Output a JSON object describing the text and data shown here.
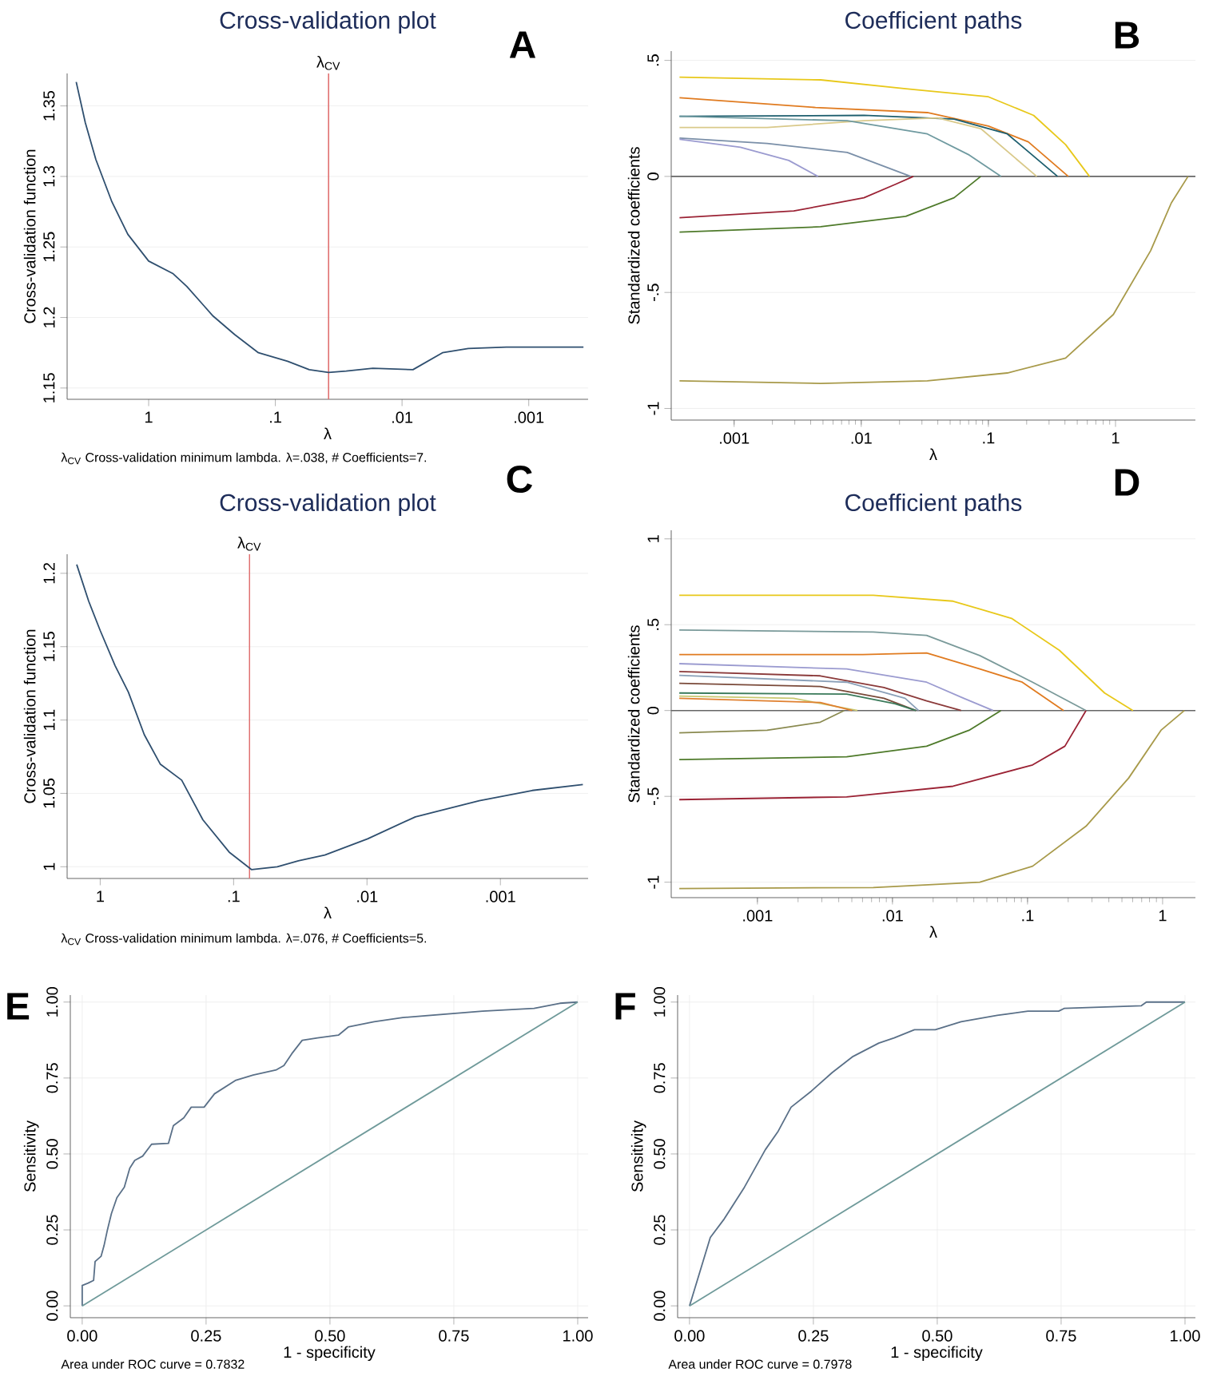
{
  "chart_data": [
    {
      "type": "line",
      "title": "Cross-validation plot",
      "xlabel": "λ",
      "ylabel": "Cross-validation function",
      "log": "x",
      "grid": "y",
      "marker": "none",
      "xlim": [
        4.4,
        0.00034
      ],
      "ylim": [
        1.142,
        1.373
      ],
      "xticks": [
        {
          "value": 1,
          "label": "1"
        },
        {
          "value": 0.1,
          "label": ".1"
        },
        {
          "value": 0.01,
          "label": ".01"
        },
        {
          "value": 0.001,
          "label": ".001"
        }
      ],
      "yticks": [
        1.15,
        1.2,
        1.25,
        1.3,
        1.35
      ],
      "x": [
        3.73,
        3.16,
        2.61,
        1.95,
        1.46,
        1,
        0.64,
        0.5,
        0.31,
        0.21,
        0.136,
        0.08,
        0.054,
        0.038,
        0.0276,
        0.017,
        0.0082,
        0.0048,
        0.003,
        0.0015,
        0.00037
      ],
      "series": [
        {
          "color": "#2f4f6f",
          "values": [
            1.367,
            1.338,
            1.312,
            1.282,
            1.259,
            1.24,
            1.231,
            1.222,
            1.201,
            1.188,
            1.175,
            1.169,
            1.163,
            1.161,
            1.162,
            1.164,
            1.163,
            1.175,
            1.178,
            1.179,
            1.179
          ]
        }
      ],
      "ref_lines": [
        {
          "axis": "x",
          "value": 0.038,
          "label": "λ$_{CV}$",
          "color": "#e07070"
        }
      ],
      "annotations": [
        "A",
        "λ$_{CV}$  Cross-validation minimum lambda.  λ=.038, # Coefficients=7."
      ]
    },
    {
      "type": "line",
      "title": "Coefficient paths",
      "xlabel": "λ",
      "ylabel": "Standardized coefficients",
      "log": "x",
      "grid": "y",
      "marker": "none",
      "xlim": [
        0.00032,
        4.25
      ],
      "ylim": [
        -1.05,
        0.54
      ],
      "xticks": [
        {
          "value": 0.001,
          "label": ".001"
        },
        {
          "value": 0.01,
          "label": ".01"
        },
        {
          "value": 0.1,
          "label": ".1"
        },
        {
          "value": 1,
          "label": "1"
        }
      ],
      "yticks": [
        -1,
        {
          "value": -0.5,
          "label": "-.5"
        },
        0,
        {
          "value": 0.5,
          "label": ".5"
        }
      ],
      "series": [
        {
          "color": "#e8c81a",
          "x": [
            0.000372,
            0.00479,
            0.0224,
            0.1,
            0.227,
            0.405,
            0.624
          ],
          "values": [
            0.428,
            0.416,
            0.378,
            0.343,
            0.263,
            0.137,
            0
          ]
        },
        {
          "color": "#e07b20",
          "x": [
            0.000372,
            0.00437,
            0.0331,
            0.1,
            0.206,
            0.425
          ],
          "values": [
            0.339,
            0.297,
            0.275,
            0.217,
            0.149,
            0
          ]
        },
        {
          "color": "#1d5e6e",
          "x": [
            0.000372,
            0.0105,
            0.0537,
            0.141,
            0.35
          ],
          "values": [
            0.259,
            0.263,
            0.247,
            0.183,
            0
          ]
        },
        {
          "color": "#d9c98a",
          "x": [
            0.000372,
            0.00182,
            0.0105,
            0.0398,
            0.0871,
            0.24
          ],
          "values": [
            0.211,
            0.211,
            0.24,
            0.252,
            0.206,
            0
          ]
        },
        {
          "color": "#6f9aa0",
          "x": [
            0.000372,
            0.00776,
            0.0331,
            0.0708,
            0.126
          ],
          "values": [
            0.259,
            0.24,
            0.183,
            0.092,
            0
          ]
        },
        {
          "color": "#7a8fa8",
          "x": [
            0.000372,
            0.00182,
            0.00776,
            0.0245
          ],
          "values": [
            0.165,
            0.142,
            0.103,
            0
          ]
        },
        {
          "color": "#9b9bd0",
          "x": [
            0.000372,
            0.00112,
            0.00269,
            0.00457
          ],
          "values": [
            0.16,
            0.126,
            0.069,
            0
          ]
        },
        {
          "color": "#9b2335",
          "x": [
            0.000372,
            0.00295,
            0.0105,
            0.0186,
            0.0257
          ],
          "values": [
            -0.178,
            -0.149,
            -0.092,
            -0.034,
            0
          ]
        },
        {
          "color": "#4e7a2a",
          "x": [
            0.000372,
            0.00479,
            0.0224,
            0.0537,
            0.0871
          ],
          "values": [
            -0.24,
            -0.217,
            -0.172,
            -0.092,
            0
          ]
        },
        {
          "color": "#a89a4a",
          "x": [
            0.000372,
            0.00479,
            0.0331,
            0.141,
            0.405,
            0.962,
            1.89,
            2.75,
            3.72
          ],
          "values": [
            -0.881,
            -0.892,
            -0.881,
            -0.847,
            -0.783,
            -0.595,
            -0.32,
            -0.114,
            0
          ]
        }
      ],
      "ref_lines": [
        {
          "axis": "y",
          "value": 0,
          "color": "#666666"
        }
      ],
      "annotations": [
        "B"
      ]
    },
    {
      "type": "line",
      "title": "Cross-validation plot",
      "xlabel": "λ",
      "ylabel": "Cross-validation function",
      "log": "x",
      "grid": "y",
      "marker": "none",
      "xlim": [
        1.77,
        0.00022
      ],
      "ylim": [
        0.992,
        1.213
      ],
      "xticks": [
        {
          "value": 1,
          "label": "1"
        },
        {
          "value": 0.1,
          "label": ".1"
        },
        {
          "value": 0.01,
          "label": ".01"
        },
        {
          "value": 0.001,
          "label": ".001"
        }
      ],
      "yticks": [
        1,
        1.05,
        1.1,
        1.15,
        1.2
      ],
      "x": [
        1.5,
        1.22,
        1,
        0.773,
        0.615,
        0.467,
        0.355,
        0.245,
        0.17,
        0.108,
        0.0732,
        0.0471,
        0.0327,
        0.0207,
        0.0099,
        0.00434,
        0.00144,
        0.000577,
        0.000241
      ],
      "series": [
        {
          "color": "#2f4f6f",
          "values": [
            1.206,
            1.181,
            1.161,
            1.137,
            1.119,
            1.09,
            1.07,
            1.059,
            1.032,
            1.01,
            0.998,
            1.0,
            1.004,
            1.008,
            1.019,
            1.034,
            1.045,
            1.052,
            1.056
          ]
        }
      ],
      "ref_lines": [
        {
          "axis": "x",
          "value": 0.076,
          "label": "λ$_{CV}$",
          "color": "#e07070"
        }
      ],
      "annotations": [
        "C",
        "λ$_{CV}$  Cross-validation minimum lambda.  λ=.076, # Coefficients=5."
      ]
    },
    {
      "type": "line",
      "title": "Coefficient paths",
      "xlabel": "λ",
      "ylabel": "Standardized coefficients",
      "log": "x",
      "grid": "y",
      "marker": "none",
      "xlim": [
        0.00023,
        1.75
      ],
      "ylim": [
        -1.09,
        1.05
      ],
      "xticks": [
        {
          "value": 0.001,
          "label": ".001"
        },
        {
          "value": 0.01,
          "label": ".01"
        },
        {
          "value": 0.1,
          "label": ".1"
        },
        {
          "value": 1,
          "label": "1"
        }
      ],
      "yticks": [
        -1,
        {
          "value": -0.5,
          "label": "-.5"
        },
        0,
        {
          "value": 0.5,
          "label": ".5"
        },
        1
      ],
      "series": [
        {
          "color": "#e8c81a",
          "x": [
            0.000264,
            0.00721,
            0.0281,
            0.0762,
            0.172,
            0.372,
            0.603
          ],
          "values": [
            0.671,
            0.671,
            0.637,
            0.537,
            0.351,
            0.102,
            0
          ]
        },
        {
          "color": "#7a9a9a",
          "x": [
            0.000264,
            0.00721,
            0.0179,
            0.0443,
            0.109,
            0.271
          ],
          "values": [
            0.469,
            0.457,
            0.438,
            0.32,
            0.165,
            0
          ]
        },
        {
          "color": "#e07b20",
          "x": [
            0.000264,
            0.00603,
            0.0179,
            0.0443,
            0.0914,
            0.185
          ],
          "values": [
            0.326,
            0.326,
            0.335,
            0.242,
            0.165,
            0
          ]
        },
        {
          "color": "#9b9bd0",
          "x": [
            0.000264,
            0.00458,
            0.0179,
            0.0337,
            0.0555
          ],
          "values": [
            0.273,
            0.242,
            0.165,
            0.071,
            0
          ]
        },
        {
          "color": "#8b3a3a",
          "x": [
            0.000264,
            0.00292,
            0.00865,
            0.0179,
            0.0322
          ],
          "values": [
            0.227,
            0.202,
            0.134,
            0.056,
            0
          ]
        },
        {
          "color": "#8aa0b8",
          "x": [
            0.000264,
            0.00458,
            0.0124,
            0.0156
          ],
          "values": [
            0.205,
            0.165,
            0.071,
            0
          ]
        },
        {
          "color": "#7a4a3a",
          "x": [
            0.000264,
            0.00292,
            0.00865,
            0.0149
          ],
          "values": [
            0.158,
            0.14,
            0.071,
            0
          ]
        },
        {
          "color": "#3a7a5a",
          "x": [
            0.000264,
            0.00458,
            0.0104,
            0.0149
          ],
          "values": [
            0.102,
            0.096,
            0.04,
            0
          ]
        },
        {
          "color": "#c8c870",
          "x": [
            0.000264,
            0.00185,
            0.0055
          ],
          "values": [
            0.084,
            0.071,
            0
          ]
        },
        {
          "color": "#e08030",
          "x": [
            0.000264,
            0.00292,
            0.00502
          ],
          "values": [
            0.071,
            0.047,
            0
          ]
        },
        {
          "color": "#8a8a50",
          "x": [
            0.000264,
            0.00118,
            0.00292,
            0.00439
          ],
          "values": [
            -0.13,
            -0.115,
            -0.068,
            0
          ]
        },
        {
          "color": "#4e7a2a",
          "x": [
            0.000264,
            0.00458,
            0.0179,
            0.0369,
            0.0635
          ],
          "values": [
            -0.286,
            -0.27,
            -0.208,
            -0.115,
            0
          ]
        },
        {
          "color": "#9b2335",
          "x": [
            0.000264,
            0.00458,
            0.0281,
            0.109,
            0.189,
            0.271
          ],
          "values": [
            -0.519,
            -0.503,
            -0.441,
            -0.317,
            -0.208,
            0
          ]
        },
        {
          "color": "#a89a4a",
          "x": [
            0.000264,
            0.00721,
            0.0443,
            0.109,
            0.271,
            0.56,
            0.973,
            1.45
          ],
          "values": [
            -1.037,
            -1.031,
            -1.0,
            -0.907,
            -0.674,
            -0.394,
            -0.115,
            0
          ]
        }
      ],
      "ref_lines": [
        {
          "axis": "y",
          "value": 0,
          "color": "#666666"
        }
      ],
      "annotations": [
        "D"
      ]
    },
    {
      "type": "line",
      "xlabel": "1 - specificity",
      "ylabel": "Sensitivity",
      "grid": true,
      "marker": "none",
      "xlim": [
        -0.024,
        1.021
      ],
      "ylim": [
        -0.039,
        1.023
      ],
      "xticks": [
        {
          "value": 0,
          "label": "0.00"
        },
        {
          "value": 0.25,
          "label": "0.25"
        },
        {
          "value": 0.5,
          "label": "0.50"
        },
        {
          "value": 0.75,
          "label": "0.75"
        },
        {
          "value": 1,
          "label": "1.00"
        }
      ],
      "yticks": [
        {
          "value": 0,
          "label": "0.00"
        },
        {
          "value": 0.25,
          "label": "0.25"
        },
        {
          "value": 0.5,
          "label": "0.50"
        },
        {
          "value": 0.75,
          "label": "0.75"
        },
        {
          "value": 1,
          "label": "1.00"
        }
      ],
      "series": [
        {
          "color": "#5a7088",
          "x": [
            0,
            0,
            0.012,
            0.023,
            0.026,
            0.038,
            0.044,
            0.051,
            0.059,
            0.07,
            0.085,
            0.096,
            0.106,
            0.122,
            0.14,
            0.174,
            0.184,
            0.205,
            0.22,
            0.246,
            0.267,
            0.309,
            0.345,
            0.392,
            0.407,
            0.423,
            0.444,
            0.475,
            0.517,
            0.537,
            0.589,
            0.647,
            0.808,
            0.912,
            0.964,
            1
          ],
          "values": [
            0,
            0.067,
            0.075,
            0.084,
            0.146,
            0.163,
            0.198,
            0.251,
            0.304,
            0.356,
            0.391,
            0.453,
            0.479,
            0.493,
            0.532,
            0.535,
            0.593,
            0.619,
            0.654,
            0.654,
            0.698,
            0.742,
            0.76,
            0.777,
            0.791,
            0.83,
            0.874,
            0.882,
            0.891,
            0.918,
            0.935,
            0.949,
            0.97,
            0.979,
            0.996,
            1
          ]
        },
        {
          "color": "#6f9a9a",
          "x": [
            0,
            1
          ],
          "values": [
            0,
            1
          ]
        }
      ],
      "annotations": [
        "E",
        "Area under ROC curve = 0.7832"
      ]
    },
    {
      "type": "line",
      "xlabel": "1 - specificity",
      "ylabel": "Sensitivity",
      "grid": true,
      "marker": "none",
      "xlim": [
        -0.024,
        1.021
      ],
      "ylim": [
        -0.039,
        1.023
      ],
      "xticks": [
        {
          "value": 0,
          "label": "0.00"
        },
        {
          "value": 0.25,
          "label": "0.25"
        },
        {
          "value": 0.5,
          "label": "0.50"
        },
        {
          "value": 0.75,
          "label": "0.75"
        },
        {
          "value": 1,
          "label": "1.00"
        }
      ],
      "yticks": [
        {
          "value": 0,
          "label": "0.00"
        },
        {
          "value": 0.25,
          "label": "0.25"
        },
        {
          "value": 0.5,
          "label": "0.50"
        },
        {
          "value": 0.75,
          "label": "0.75"
        },
        {
          "value": 1,
          "label": "1.00"
        }
      ],
      "series": [
        {
          "color": "#5a7088",
          "x": [
            0,
            0.042,
            0.07,
            0.111,
            0.153,
            0.179,
            0.205,
            0.246,
            0.288,
            0.33,
            0.382,
            0.413,
            0.454,
            0.496,
            0.548,
            0.621,
            0.683,
            0.745,
            0.756,
            0.912,
            0.922,
            1
          ],
          "values": [
            0,
            0.225,
            0.286,
            0.391,
            0.514,
            0.575,
            0.654,
            0.707,
            0.768,
            0.821,
            0.865,
            0.882,
            0.909,
            0.909,
            0.935,
            0.956,
            0.97,
            0.97,
            0.979,
            0.988,
            1,
            1
          ]
        },
        {
          "color": "#6f9a9a",
          "x": [
            0,
            1
          ],
          "values": [
            0,
            1
          ]
        }
      ],
      "annotations": [
        "F",
        "Area under ROC curve = 0.7978"
      ]
    }
  ]
}
